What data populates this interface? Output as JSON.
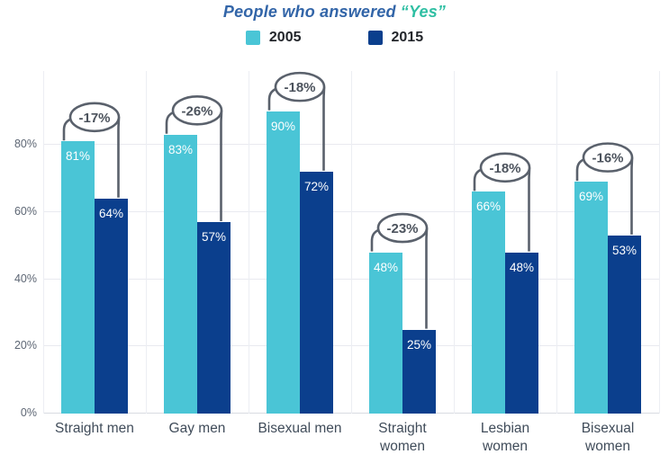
{
  "title": {
    "prefix": "People who answered",
    "highlight": "“Yes”"
  },
  "legend": [
    {
      "label": "2005",
      "color": "#4ac5d6"
    },
    {
      "label": "2015",
      "color": "#0b3f8d"
    }
  ],
  "chart_data": {
    "type": "bar",
    "title": "People who answered “Yes”",
    "categories": [
      "Straight men",
      "Gay men",
      "Bisexual men",
      "Straight women",
      "Lesbian women",
      "Bisexual women"
    ],
    "category_label_lines": [
      [
        "Straight men"
      ],
      [
        "Gay men"
      ],
      [
        "Bisexual men"
      ],
      [
        "Straight",
        "women"
      ],
      [
        "Lesbian",
        "women"
      ],
      [
        "Bisexual",
        "women"
      ]
    ],
    "series": [
      {
        "name": "2005",
        "color": "#4ac5d6",
        "values": [
          81,
          83,
          90,
          48,
          66,
          69
        ]
      },
      {
        "name": "2015",
        "color": "#0b3f8d",
        "values": [
          64,
          57,
          72,
          25,
          48,
          53
        ]
      }
    ],
    "value_label_suffix": "%",
    "changes": [
      "-17%",
      "-26%",
      "-18%",
      "-23%",
      "-18%",
      "-16%"
    ],
    "xlabel": "",
    "ylabel": "",
    "ylim": [
      0,
      100
    ],
    "ytick_values": [
      0,
      20,
      40,
      60,
      80
    ],
    "ytick_labels": [
      "0%",
      "20%",
      "40%",
      "60%",
      "80%"
    ],
    "grid": true,
    "legend_position": "top",
    "annotation_style": {
      "stroke_color": "#5a616c",
      "text_color": "#4c535d",
      "fill_color": "#ffffff"
    }
  }
}
